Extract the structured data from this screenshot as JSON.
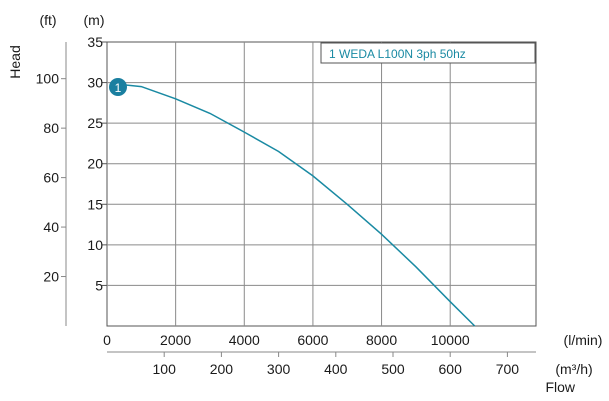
{
  "chart_data": {
    "type": "line",
    "xlabel": "Flow",
    "ylabel": "Head",
    "x_unit_primary": "(l/min)",
    "x_unit_secondary": "(m³/h)",
    "y_unit_primary": "(m)",
    "y_unit_secondary": "(ft)",
    "x_ticks_primary": [
      "0",
      "2000",
      "4000",
      "6000",
      "8000",
      "10000"
    ],
    "x_ticks_secondary": [
      "100",
      "200",
      "300",
      "400",
      "500",
      "600",
      "700"
    ],
    "y_ticks_primary": [
      "5",
      "10",
      "15",
      "20",
      "25",
      "30",
      "35"
    ],
    "y_ticks_secondary": [
      "20",
      "40",
      "60",
      "80",
      "100"
    ],
    "xlim": [
      0,
      12500
    ],
    "ylim": [
      0,
      35
    ],
    "grid": true,
    "legend_position": "top-right",
    "series": [
      {
        "name": "1 WEDA L100N 3ph 50hz",
        "marker_label": "1",
        "color": "#1a8aa3",
        "x": [
          300,
          1000,
          2000,
          3000,
          4000,
          5000,
          6000,
          7000,
          8000,
          9000,
          10000,
          11000
        ],
        "y": [
          29.8,
          29.5,
          28.0,
          26.2,
          23.9,
          21.5,
          18.5,
          15.0,
          11.3,
          7.3,
          3.0,
          -1.2
        ]
      }
    ]
  }
}
